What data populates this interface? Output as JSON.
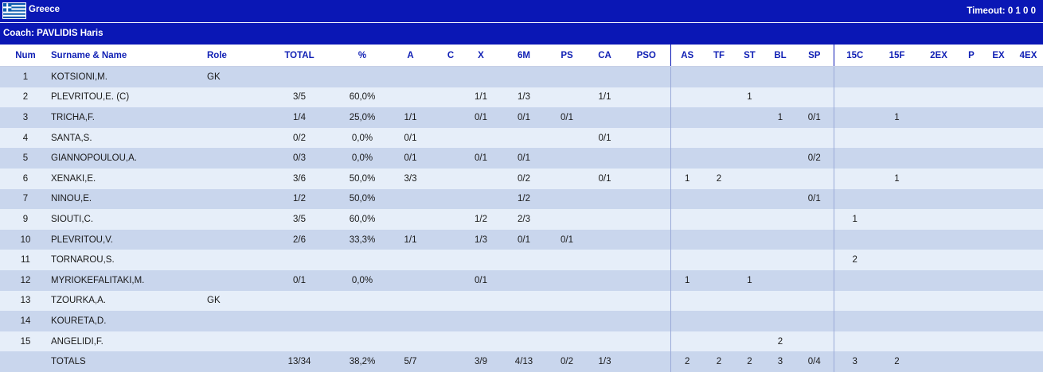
{
  "team": {
    "name": "Greece",
    "flag_icon": "greece-flag-icon",
    "timeout_label": "Timeout:",
    "timeouts": "0 1 0 0"
  },
  "coach": "Coach: PAVLIDIS Haris",
  "columns": [
    "Num",
    "Surname & Name",
    "Role",
    "TOTAL",
    "%",
    "A",
    "C",
    "X",
    "6M",
    "PS",
    "CA",
    "PSO",
    "AS",
    "TF",
    "ST",
    "BL",
    "SP",
    "15C",
    "15F",
    "2EX",
    "P",
    "EX",
    "4EX"
  ],
  "rows": [
    [
      "1",
      "KOTSIONI,M.",
      "GK",
      "",
      "",
      "",
      "",
      "",
      "",
      "",
      "",
      "",
      "",
      "",
      "",
      "",
      "",
      "",
      "",
      "",
      "",
      "",
      ""
    ],
    [
      "2",
      "PLEVRITOU,E.  (C)",
      "",
      "3/5",
      "60,0%",
      "",
      "",
      "1/1",
      "1/3",
      "",
      "1/1",
      "",
      "",
      "",
      "1",
      "",
      "",
      "",
      "",
      "",
      "",
      "",
      ""
    ],
    [
      "3",
      "TRICHA,F.",
      "",
      "1/4",
      "25,0%",
      "1/1",
      "",
      "0/1",
      "0/1",
      "0/1",
      "",
      "",
      "",
      "",
      "",
      "1",
      "0/1",
      "",
      "1",
      "",
      "",
      "",
      ""
    ],
    [
      "4",
      "SANTA,S.",
      "",
      "0/2",
      "0,0%",
      "0/1",
      "",
      "",
      "",
      "",
      "0/1",
      "",
      "",
      "",
      "",
      "",
      "",
      "",
      "",
      "",
      "",
      "",
      ""
    ],
    [
      "5",
      "GIANNOPOULOU,A.",
      "",
      "0/3",
      "0,0%",
      "0/1",
      "",
      "0/1",
      "0/1",
      "",
      "",
      "",
      "",
      "",
      "",
      "",
      "0/2",
      "",
      "",
      "",
      "",
      "",
      ""
    ],
    [
      "6",
      "XENAKI,E.",
      "",
      "3/6",
      "50,0%",
      "3/3",
      "",
      "",
      "0/2",
      "",
      "0/1",
      "",
      "1",
      "2",
      "",
      "",
      "",
      "",
      "1",
      "",
      "",
      "",
      ""
    ],
    [
      "7",
      "NINOU,E.",
      "",
      "1/2",
      "50,0%",
      "",
      "",
      "",
      "1/2",
      "",
      "",
      "",
      "",
      "",
      "",
      "",
      "0/1",
      "",
      "",
      "",
      "",
      "",
      ""
    ],
    [
      "9",
      "SIOUTI,C.",
      "",
      "3/5",
      "60,0%",
      "",
      "",
      "1/2",
      "2/3",
      "",
      "",
      "",
      "",
      "",
      "",
      "",
      "",
      "1",
      "",
      "",
      "",
      "",
      ""
    ],
    [
      "10",
      "PLEVRITOU,V.",
      "",
      "2/6",
      "33,3%",
      "1/1",
      "",
      "1/3",
      "0/1",
      "0/1",
      "",
      "",
      "",
      "",
      "",
      "",
      "",
      "",
      "",
      "",
      "",
      "",
      ""
    ],
    [
      "11",
      "TORNAROU,S.",
      "",
      "",
      "",
      "",
      "",
      "",
      "",
      "",
      "",
      "",
      "",
      "",
      "",
      "",
      "",
      "2",
      "",
      "",
      "",
      "",
      ""
    ],
    [
      "12",
      "MYRIOKEFALITAKI,M.",
      "",
      "0/1",
      "0,0%",
      "",
      "",
      "0/1",
      "",
      "",
      "",
      "",
      "1",
      "",
      "1",
      "",
      "",
      "",
      "",
      "",
      "",
      "",
      ""
    ],
    [
      "13",
      "TZOURKA,A.",
      "GK",
      "",
      "",
      "",
      "",
      "",
      "",
      "",
      "",
      "",
      "",
      "",
      "",
      "",
      "",
      "",
      "",
      "",
      "",
      "",
      ""
    ],
    [
      "14",
      "KOURETA,D.",
      "",
      "",
      "",
      "",
      "",
      "",
      "",
      "",
      "",
      "",
      "",
      "",
      "",
      "",
      "",
      "",
      "",
      "",
      "",
      "",
      ""
    ],
    [
      "15",
      "ANGELIDI,F.",
      "",
      "",
      "",
      "",
      "",
      "",
      "",
      "",
      "",
      "",
      "",
      "",
      "",
      "2",
      "",
      "",
      "",
      "",
      "",
      "",
      ""
    ],
    [
      "",
      "TOTALS",
      "",
      "13/34",
      "38,2%",
      "5/7",
      "",
      "3/9",
      "4/13",
      "0/2",
      "1/3",
      "",
      "2",
      "2",
      "2",
      "3",
      "0/4",
      "3",
      "2",
      "",
      "",
      "",
      ""
    ]
  ]
}
